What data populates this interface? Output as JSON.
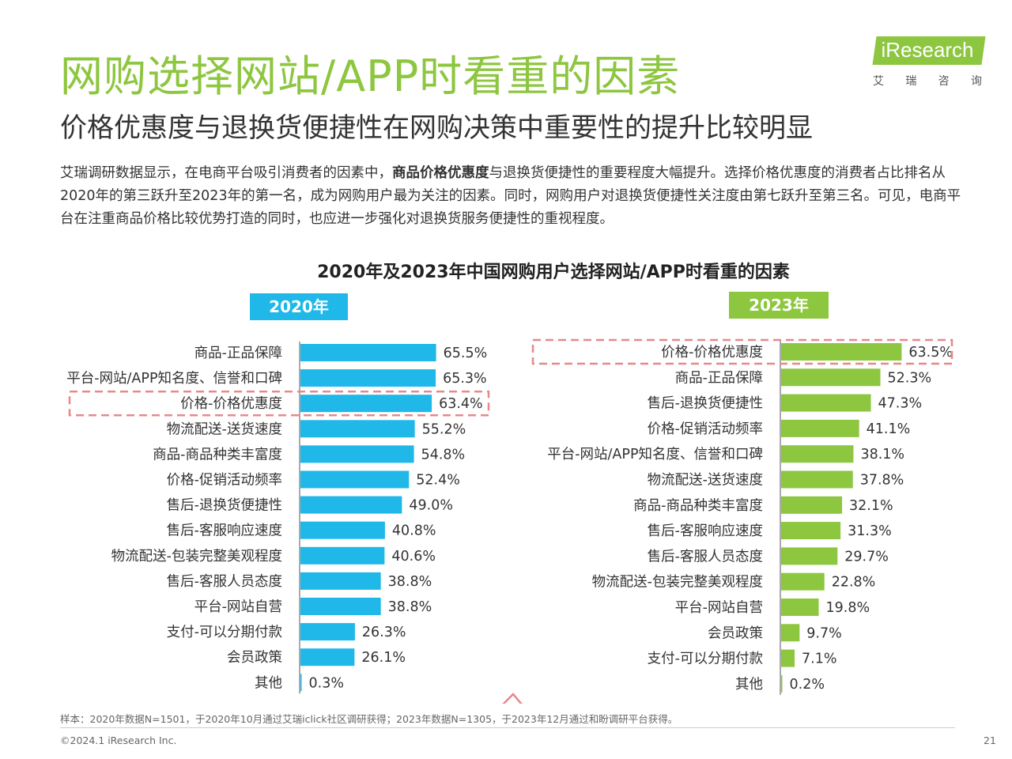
{
  "page": {
    "title": "网购选择网站/APP时看重的因素",
    "subtitle": "价格优惠度与退换货便捷性在网购决策中重要性的提升比较明显",
    "description_pre": "艾瑞调研数据显示，在电商平台吸引消费者的因素中，",
    "description_bold": "商品价格优惠度",
    "description_post": "与退换货便捷性的重要程度大幅提升。选择价格优惠度的消费者占比排名从2020年的第三跃升至2023年的第一名，成为网购用户最为关注的因素。同时，网购用户对退换货便捷性关注度由第七跃升至第三名。可见，电商平台在注重商品价格比较优势打造的同时，也应进一步强化对退换货服务便捷性的重视程度。",
    "footnote": "样本：2020年数据N=1501，于2020年10月通过艾瑞iclick社区调研获得；2023年数据N=1305，于2023年12月通过和盼调研平台获得。",
    "copyright": "©2024.1 iResearch Inc.",
    "page_number": "21"
  },
  "logo": {
    "text": "iResearch",
    "cn_chars": [
      "艾",
      "瑞",
      "咨",
      "询"
    ]
  },
  "colors": {
    "title_green": "#8dc63f",
    "bar_2020": "#1fb8e8",
    "bar_2023": "#8dc63f",
    "highlight_dash": "#e8888a"
  },
  "chart_data": [
    {
      "type": "bar",
      "orientation": "horizontal",
      "title": "2020年及2023年中国网购用户选择网站/APP时看重的因素",
      "series_label": "2020年",
      "categories": [
        "商品-正品保障",
        "平台-网站/APP知名度、信誉和口碑",
        "价格-价格优惠度",
        "物流配送-送货速度",
        "商品-商品种类丰富度",
        "价格-促销活动频率",
        "售后-退换货便捷性",
        "售后-客服响应速度",
        "物流配送-包装完整美观程度",
        "售后-客服人员态度",
        "平台-网站自营",
        "支付-可以分期付款",
        "会员政策",
        "其他"
      ],
      "values": [
        65.5,
        65.3,
        63.4,
        55.2,
        54.8,
        52.4,
        49.0,
        40.8,
        40.6,
        38.8,
        38.8,
        26.3,
        26.1,
        0.3
      ],
      "labels": [
        "65.5%",
        "65.3%",
        "63.4%",
        "55.2%",
        "54.8%",
        "52.4%",
        "49.0%",
        "40.8%",
        "40.6%",
        "38.8%",
        "38.8%",
        "26.3%",
        "26.1%",
        "0.3%"
      ],
      "highlighted": "价格-价格优惠度"
    },
    {
      "type": "bar",
      "orientation": "horizontal",
      "series_label": "2023年",
      "categories": [
        "价格-价格优惠度",
        "商品-正品保障",
        "售后-退换货便捷性",
        "价格-促销活动频率",
        "平台-网站/APP知名度、信誉和口碑",
        "物流配送-送货速度",
        "商品-商品种类丰富度",
        "售后-客服响应速度",
        "售后-客服人员态度",
        "物流配送-包装完整美观程度",
        "平台-网站自营",
        "会员政策",
        "支付-可以分期付款",
        "其他"
      ],
      "values": [
        63.5,
        52.3,
        47.3,
        41.1,
        38.1,
        37.8,
        32.1,
        31.3,
        29.7,
        22.8,
        19.8,
        9.7,
        7.1,
        0.2
      ],
      "labels": [
        "63.5%",
        "52.3%",
        "47.3%",
        "41.1%",
        "38.1%",
        "37.8%",
        "32.1%",
        "31.3%",
        "29.7%",
        "22.8%",
        "19.8%",
        "9.7%",
        "7.1%",
        "0.2%"
      ],
      "highlighted": "价格-价格优惠度"
    }
  ]
}
